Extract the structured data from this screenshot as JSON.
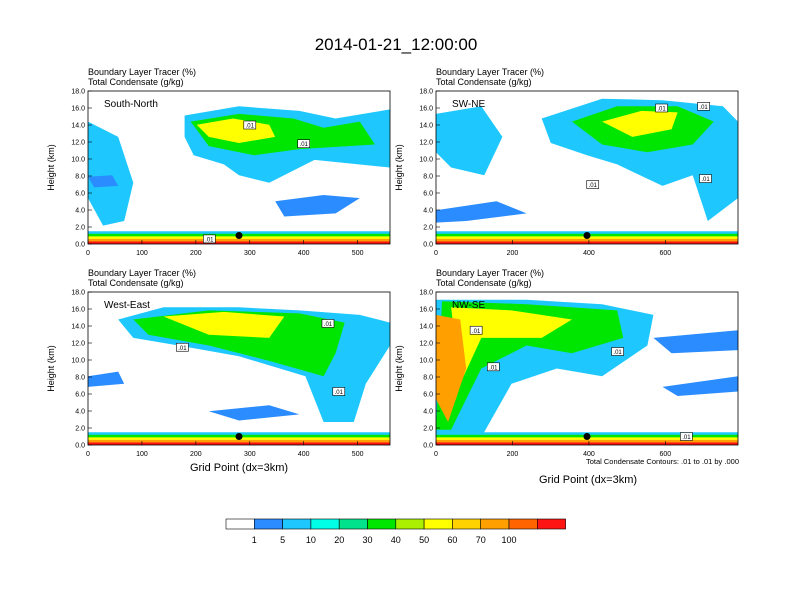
{
  "title": "2014-01-21_12:00:00",
  "panel_header": {
    "line1_name": "Boundary Layer Tracer",
    "line1_unit": "(%)",
    "line2_name": "Total Condensate",
    "line2_unit": "(g/kg)"
  },
  "ylabel": "Height (km)",
  "xlabel": "Grid Point (dx=3km)",
  "contour_note": "Total Condensate Contours: .01 to .01 by .000",
  "contour_label": ".01",
  "colorbar": {
    "colors": [
      "#ffffff",
      "#2a8cff",
      "#1ec8ff",
      "#00ffe6",
      "#00e28c",
      "#00e600",
      "#aaf000",
      "#ffff00",
      "#ffd200",
      "#ffa000",
      "#ff6400",
      "#ff1414"
    ],
    "labels": [
      "1",
      "5",
      "10",
      "20",
      "30",
      "40",
      "50",
      "60",
      "70",
      "100"
    ]
  },
  "chart_data": [
    {
      "type": "heatmap",
      "panel_label": "South-North",
      "xlim": [
        0,
        560
      ],
      "ylim": [
        0.0,
        18.0
      ],
      "xticks": [
        "0",
        "100",
        "200",
        "300",
        "400",
        "500"
      ],
      "yticks": [
        "0.0",
        "2.0",
        "4.0",
        "6.0",
        "8.0",
        "10.0",
        "12.0",
        "14.0",
        "16.0",
        "18.0"
      ],
      "marker": {
        "x": 280,
        "y": 1.0
      },
      "contour_label_positions": [
        [
          300,
          14.0
        ],
        [
          400,
          11.8
        ],
        [
          225,
          0.6
        ]
      ]
    },
    {
      "type": "heatmap",
      "panel_label": "SW-NE",
      "xlim": [
        0,
        790
      ],
      "ylim": [
        0.0,
        18.0
      ],
      "xticks": [
        "0",
        "200",
        "400",
        "600"
      ],
      "yticks": [
        "0.0",
        "2.0",
        "4.0",
        "6.0",
        "8.0",
        "10.0",
        "12.0",
        "14.0",
        "16.0",
        "18.0"
      ],
      "marker": {
        "x": 395,
        "y": 1.0
      },
      "contour_label_positions": [
        [
          590,
          16.0
        ],
        [
          700,
          16.2
        ],
        [
          410,
          7.0
        ],
        [
          705,
          7.7
        ]
      ]
    },
    {
      "type": "heatmap",
      "panel_label": "West-East",
      "xlim": [
        0,
        560
      ],
      "ylim": [
        0.0,
        18.0
      ],
      "xticks": [
        "0",
        "100",
        "200",
        "300",
        "400",
        "500"
      ],
      "yticks": [
        "0.0",
        "2.0",
        "4.0",
        "6.0",
        "8.0",
        "10.0",
        "12.0",
        "14.0",
        "16.0",
        "18.0"
      ],
      "marker": {
        "x": 280,
        "y": 1.0
      },
      "contour_label_positions": [
        [
          445,
          14.3
        ],
        [
          175,
          11.5
        ],
        [
          465,
          6.3
        ]
      ]
    },
    {
      "type": "heatmap",
      "panel_label": "NW-SE",
      "xlim": [
        0,
        790
      ],
      "ylim": [
        0.0,
        18.0
      ],
      "xticks": [
        "0",
        "200",
        "400",
        "600"
      ],
      "yticks": [
        "0.0",
        "2.0",
        "4.0",
        "6.0",
        "8.0",
        "10.0",
        "12.0",
        "14.0",
        "16.0",
        "18.0"
      ],
      "marker": {
        "x": 395,
        "y": 1.0
      },
      "contour_label_positions": [
        [
          105,
          13.5
        ],
        [
          150,
          9.2
        ],
        [
          475,
          11.0
        ],
        [
          655,
          1.0
        ]
      ]
    }
  ]
}
